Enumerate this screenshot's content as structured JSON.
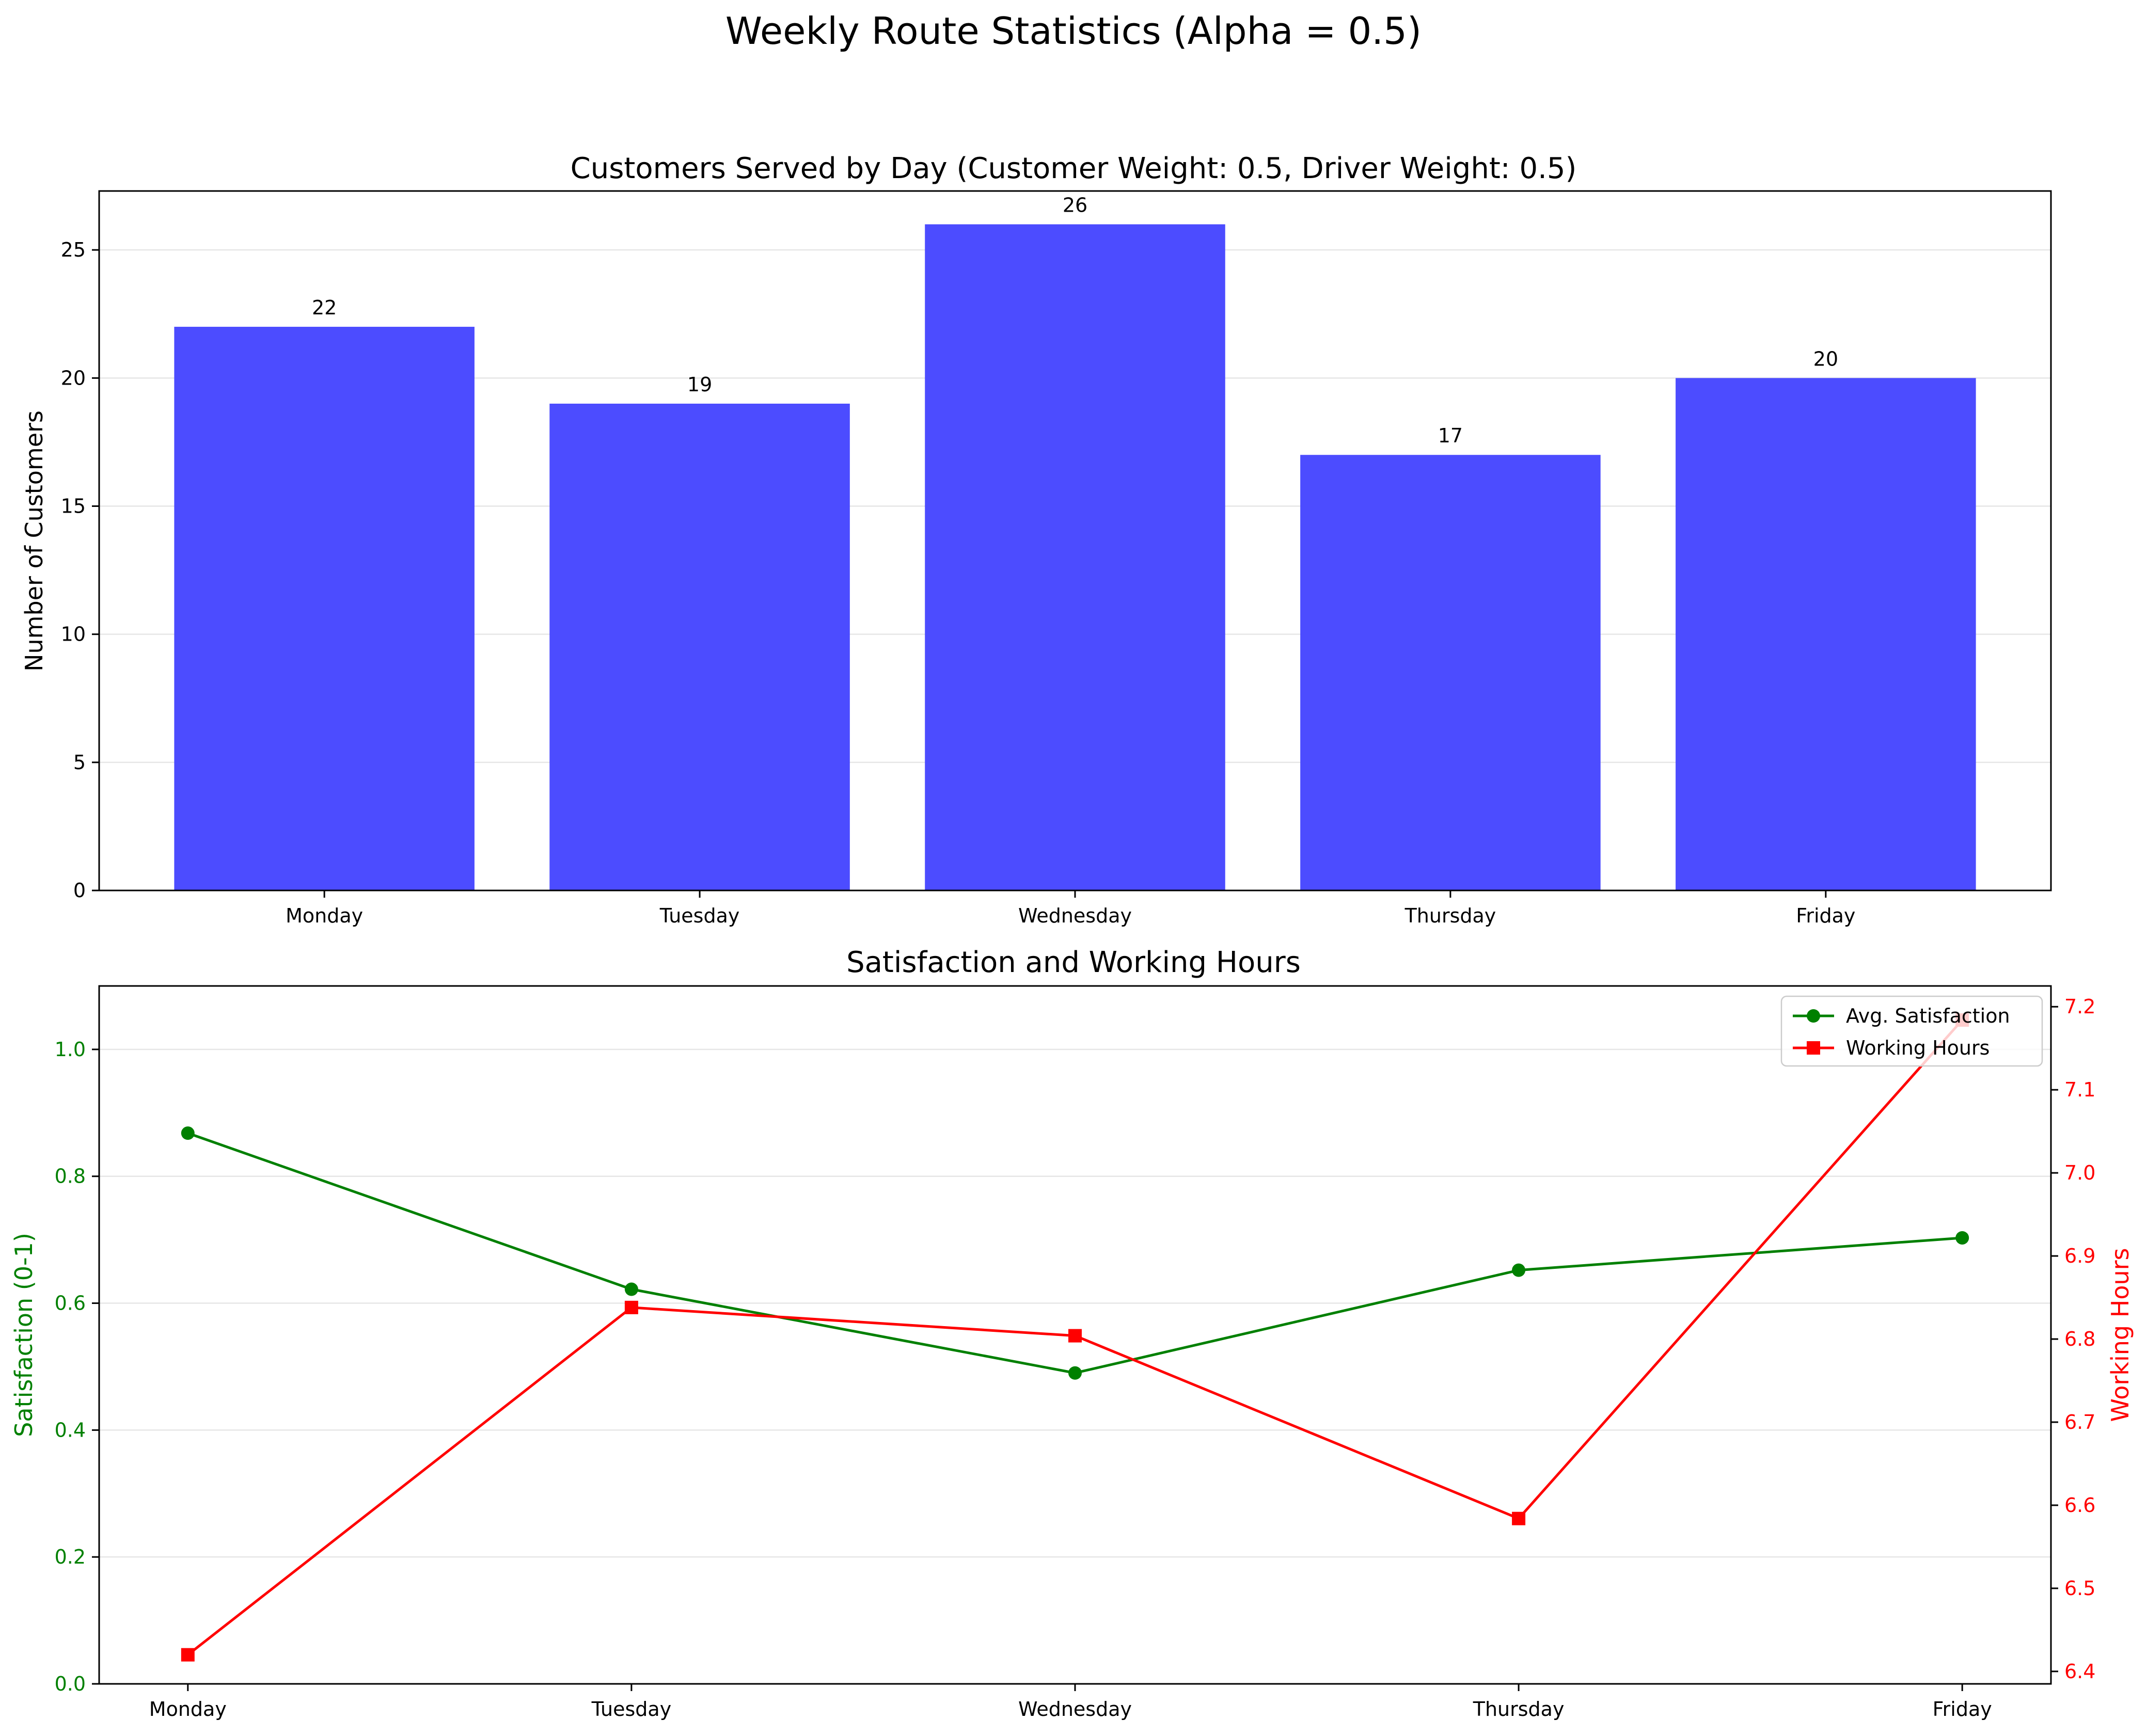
{
  "figure": {
    "suptitle": "Weekly Route Statistics (Alpha = 0.5)"
  },
  "chart_data": [
    {
      "type": "bar",
      "title": "Customers Served by Day (Customer Weight: 0.5, Driver Weight: 0.5)",
      "xlabel": "",
      "ylabel": "Number of Customers",
      "categories": [
        "Monday",
        "Tuesday",
        "Wednesday",
        "Thursday",
        "Friday"
      ],
      "values": [
        22,
        19,
        26,
        17,
        20
      ],
      "data_labels": [
        "22",
        "19",
        "26",
        "17",
        "20"
      ],
      "ylim": [
        0,
        27.3
      ],
      "yticks": [
        0,
        5,
        10,
        15,
        20,
        25
      ],
      "ytick_labels": [
        "0",
        "5",
        "10",
        "15",
        "20",
        "25"
      ],
      "bar_color": "#4c4cff",
      "grid": "y"
    },
    {
      "type": "line",
      "title": "Satisfaction and Working Hours",
      "xlabel": "",
      "categories": [
        "Monday",
        "Tuesday",
        "Wednesday",
        "Thursday",
        "Friday"
      ],
      "grid": "y",
      "legend_position": "top-right",
      "left_axis": {
        "label": "Satisfaction (0-1)",
        "color": "#008000",
        "ylim": [
          0,
          1.1
        ],
        "ticks": [
          0,
          0.2,
          0.4,
          0.6,
          0.8,
          1.0
        ],
        "tick_labels": [
          "0.0",
          "0.2",
          "0.4",
          "0.6",
          "0.8",
          "1.0"
        ]
      },
      "right_axis": {
        "label": "Working Hours",
        "color": "#ff0000",
        "ylim": [
          6.385,
          7.225
        ],
        "ticks": [
          6.4,
          6.5,
          6.6,
          6.7,
          6.8,
          6.9,
          7.0,
          7.1,
          7.2
        ],
        "tick_labels": [
          "6.4",
          "6.5",
          "6.6",
          "6.7",
          "6.8",
          "6.9",
          "7.0",
          "7.1",
          "7.2"
        ]
      },
      "series": [
        {
          "name": "Avg. Satisfaction",
          "axis": "left",
          "color": "#008000",
          "marker": "circle",
          "values": [
            0.868,
            0.622,
            0.49,
            0.652,
            0.703
          ]
        },
        {
          "name": "Working Hours",
          "axis": "right",
          "color": "#ff0000",
          "marker": "square",
          "values": [
            6.42,
            6.838,
            6.804,
            6.584,
            7.184
          ]
        }
      ]
    }
  ]
}
